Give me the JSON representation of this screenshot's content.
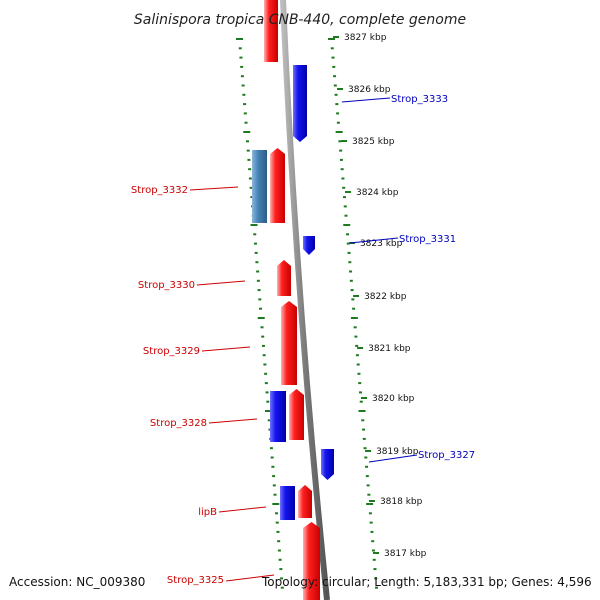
{
  "title": "Salinispora tropica CNB-440, complete genome",
  "footer": {
    "accession": "Accession: NC_009380",
    "topology": "Topology: circular; Length: 5,183,331 bp; Genes: 4,596"
  },
  "colors": {
    "forward_gene": "#ff1a1a",
    "reverse_gene": "#1010e8",
    "other_gene": "#4682b4",
    "backbone": "#888888",
    "ticks": "#1e7a1e",
    "forward_label": "#cc0000",
    "reverse_label": "#0000bb"
  },
  "scale": [
    {
      "label": "3827 kbp"
    },
    {
      "label": "3826 kbp"
    },
    {
      "label": "3825 kbp"
    },
    {
      "label": "3824 kbp"
    },
    {
      "label": "3823 kbp"
    },
    {
      "label": "3822 kbp"
    },
    {
      "label": "3821 kbp"
    },
    {
      "label": "3820 kbp"
    },
    {
      "label": "3819 kbp"
    },
    {
      "label": "3818 kbp"
    },
    {
      "label": "3817 kbp"
    }
  ],
  "genes": [
    {
      "name": "",
      "strand": "forward"
    },
    {
      "name": "Strop_3333",
      "strand": "reverse"
    },
    {
      "name": "",
      "strand": "other"
    },
    {
      "name": "Strop_3332",
      "strand": "forward"
    },
    {
      "name": "Strop_3331",
      "strand": "reverse"
    },
    {
      "name": "Strop_3330",
      "strand": "forward"
    },
    {
      "name": "Strop_3329",
      "strand": "forward"
    },
    {
      "name": "",
      "strand": "reverse"
    },
    {
      "name": "Strop_3328",
      "strand": "forward"
    },
    {
      "name": "Strop_3327",
      "strand": "reverse"
    },
    {
      "name": "",
      "strand": "reverse"
    },
    {
      "name": "lipB",
      "strand": "forward"
    },
    {
      "name": "Strop_3325",
      "strand": "forward"
    }
  ]
}
